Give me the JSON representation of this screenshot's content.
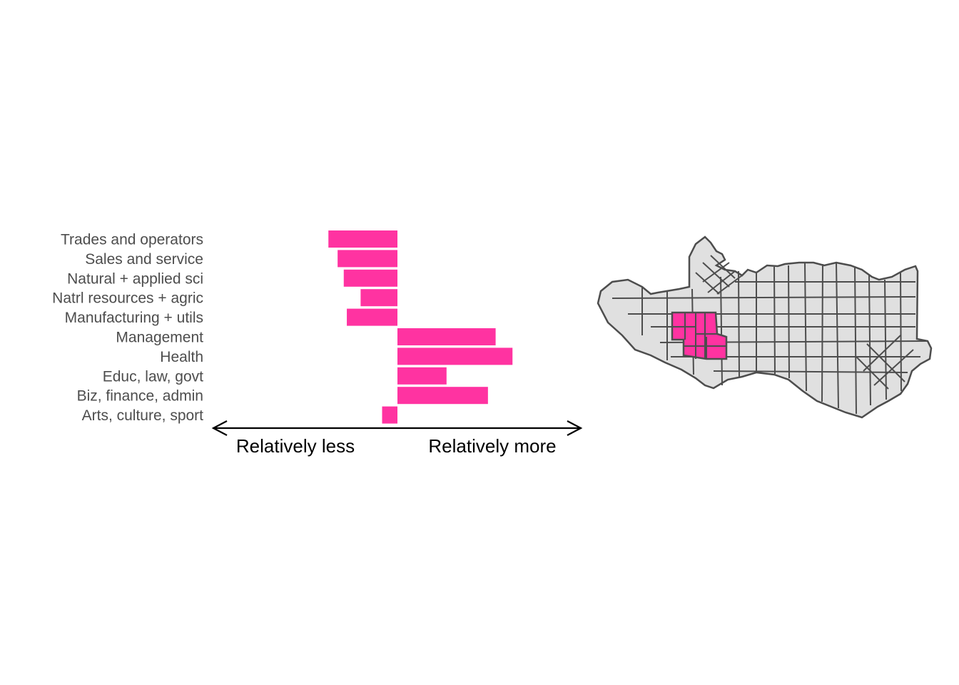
{
  "chart_data": {
    "type": "bar",
    "orientation": "horizontal",
    "categories": [
      "Trades and operators",
      "Sales and service",
      "Natural + applied sci",
      "Natrl resources + agric",
      "Manufacturing + utils",
      "Management",
      "Health",
      "Educ, law, govt",
      "Biz, finance, admin",
      "Arts, culture, sport"
    ],
    "values": [
      -0.45,
      -0.39,
      -0.35,
      -0.24,
      -0.33,
      0.64,
      0.75,
      0.32,
      0.59,
      -0.1
    ],
    "xlim": [
      -1.2,
      1.2
    ],
    "bar_color": "#ff33a1",
    "axis_labels": {
      "left": "Relatively less",
      "right": "Relatively more"
    },
    "xlabel": "",
    "ylabel": "",
    "grid": false,
    "legend": "none"
  },
  "map": {
    "fill_color": "#e0e0e0",
    "border_color": "#4d4d4d",
    "highlight_color": "#ff33a1"
  }
}
